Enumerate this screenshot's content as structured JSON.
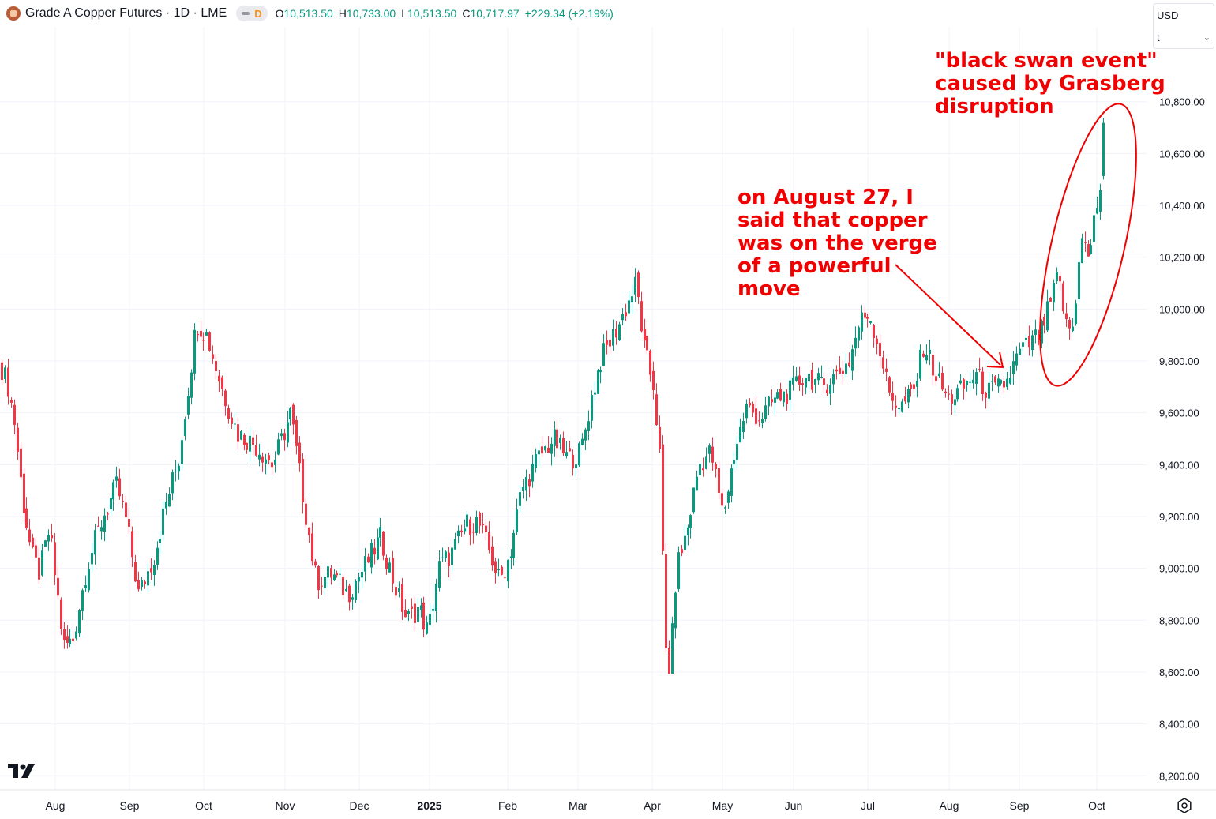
{
  "header": {
    "title": "Grade A Copper Futures · 1D · LME",
    "d_badge": "D",
    "open_label": "O",
    "open": "10,513.50",
    "high_label": "H",
    "high": "10,733.00",
    "low_label": "L",
    "low": "10,513.50",
    "close_label": "C",
    "close": "10,717.97",
    "change": "+229.34 (+2.19%)"
  },
  "currency_box": {
    "currency": "USD",
    "unit": "t"
  },
  "annotations": {
    "right": [
      "\"black swan event\"",
      "caused by Grasberg",
      "disruption"
    ],
    "middle": [
      "on August 27, I",
      "said that copper",
      "was on the verge",
      "of a powerful",
      "move"
    ]
  },
  "colors": {
    "up": "#089981",
    "down": "#f23645",
    "annotation": "#f00000",
    "grid": "#f0f3fa"
  },
  "icons": [
    "tradingview-logo-icon",
    "settings-icon",
    "instrument-logo-icon"
  ],
  "chart_data": {
    "type": "candlestick",
    "symbol": "Grade A Copper Futures",
    "interval": "1D",
    "exchange": "LME",
    "y_axis": {
      "min": 8200,
      "max": 11000,
      "ticks": [
        "8,200.00",
        "8,400.00",
        "8,600.00",
        "8,800.00",
        "9,000.00",
        "9,200.00",
        "9,400.00",
        "9,600.00",
        "9,800.00",
        "10,000.00",
        "10,200.00",
        "10,400.00",
        "10,600.00",
        "10,800.00"
      ],
      "tick_values": [
        8200,
        8400,
        8600,
        8800,
        9000,
        9200,
        9400,
        9600,
        9800,
        10000,
        10200,
        10400,
        10600,
        10800
      ]
    },
    "x_axis": {
      "labels": [
        "Aug",
        "Sep",
        "Oct",
        "Nov",
        "Dec",
        "2025",
        "Feb",
        "Mar",
        "Apr",
        "May",
        "Jun",
        "Jul",
        "Aug",
        "Sep",
        "Oct"
      ],
      "bold": [
        "2025"
      ]
    },
    "grid": true,
    "series": [
      {
        "name": "Grade A Copper Futures",
        "anchors": [
          [
            0,
            9790
          ],
          [
            10,
            9700
          ],
          [
            18,
            9560
          ],
          [
            28,
            9270
          ],
          [
            40,
            9050
          ],
          [
            50,
            8980
          ],
          [
            62,
            9150
          ],
          [
            80,
            8700
          ],
          [
            92,
            8720
          ],
          [
            110,
            9010
          ],
          [
            130,
            9200
          ],
          [
            148,
            9320
          ],
          [
            160,
            9180
          ],
          [
            175,
            8900
          ],
          [
            195,
            9050
          ],
          [
            210,
            9250
          ],
          [
            226,
            9420
          ],
          [
            238,
            9700
          ],
          [
            248,
            9950
          ],
          [
            262,
            9900
          ],
          [
            280,
            9700
          ],
          [
            300,
            9520
          ],
          [
            322,
            9480
          ],
          [
            345,
            9400
          ],
          [
            368,
            9600
          ],
          [
            385,
            9250
          ],
          [
            400,
            8950
          ],
          [
            420,
            8980
          ],
          [
            440,
            8900
          ],
          [
            460,
            9000
          ],
          [
            482,
            9120
          ],
          [
            500,
            8930
          ],
          [
            515,
            8800
          ],
          [
            530,
            8850
          ],
          [
            542,
            8750
          ],
          [
            555,
            9000
          ],
          [
            572,
            9060
          ],
          [
            590,
            9170
          ],
          [
            605,
            9180
          ],
          [
            620,
            9060
          ],
          [
            632,
            8950
          ],
          [
            645,
            9050
          ],
          [
            660,
            9300
          ],
          [
            680,
            9420
          ],
          [
            700,
            9500
          ],
          [
            720,
            9420
          ],
          [
            735,
            9450
          ],
          [
            748,
            9650
          ],
          [
            760,
            9800
          ],
          [
            785,
            9950
          ],
          [
            805,
            10100
          ],
          [
            815,
            9850
          ],
          [
            828,
            9700
          ],
          [
            836,
            9400
          ],
          [
            842,
            8700
          ],
          [
            848,
            8600
          ],
          [
            856,
            9000
          ],
          [
            870,
            9150
          ],
          [
            885,
            9400
          ],
          [
            900,
            9450
          ],
          [
            915,
            9200
          ],
          [
            930,
            9450
          ],
          [
            945,
            9620
          ],
          [
            962,
            9580
          ],
          [
            980,
            9650
          ],
          [
            1000,
            9680
          ],
          [
            1020,
            9750
          ],
          [
            1040,
            9700
          ],
          [
            1060,
            9750
          ],
          [
            1075,
            9800
          ],
          [
            1088,
            9950
          ],
          [
            1100,
            9990
          ],
          [
            1115,
            9830
          ],
          [
            1125,
            9680
          ],
          [
            1140,
            9620
          ],
          [
            1158,
            9690
          ],
          [
            1170,
            9870
          ],
          [
            1185,
            9740
          ],
          [
            1200,
            9650
          ],
          [
            1215,
            9680
          ],
          [
            1235,
            9750
          ],
          [
            1250,
            9680
          ],
          [
            1262,
            9690
          ],
          [
            1275,
            9720
          ],
          [
            1290,
            9830
          ],
          [
            1305,
            9870
          ],
          [
            1318,
            9910
          ],
          [
            1330,
            10020
          ],
          [
            1340,
            10130
          ],
          [
            1350,
            9930
          ],
          [
            1360,
            9930
          ],
          [
            1368,
            10320
          ],
          [
            1378,
            10180
          ],
          [
            1386,
            10350
          ],
          [
            1393,
            10460
          ],
          [
            1398,
            10718
          ]
        ]
      }
    ]
  }
}
